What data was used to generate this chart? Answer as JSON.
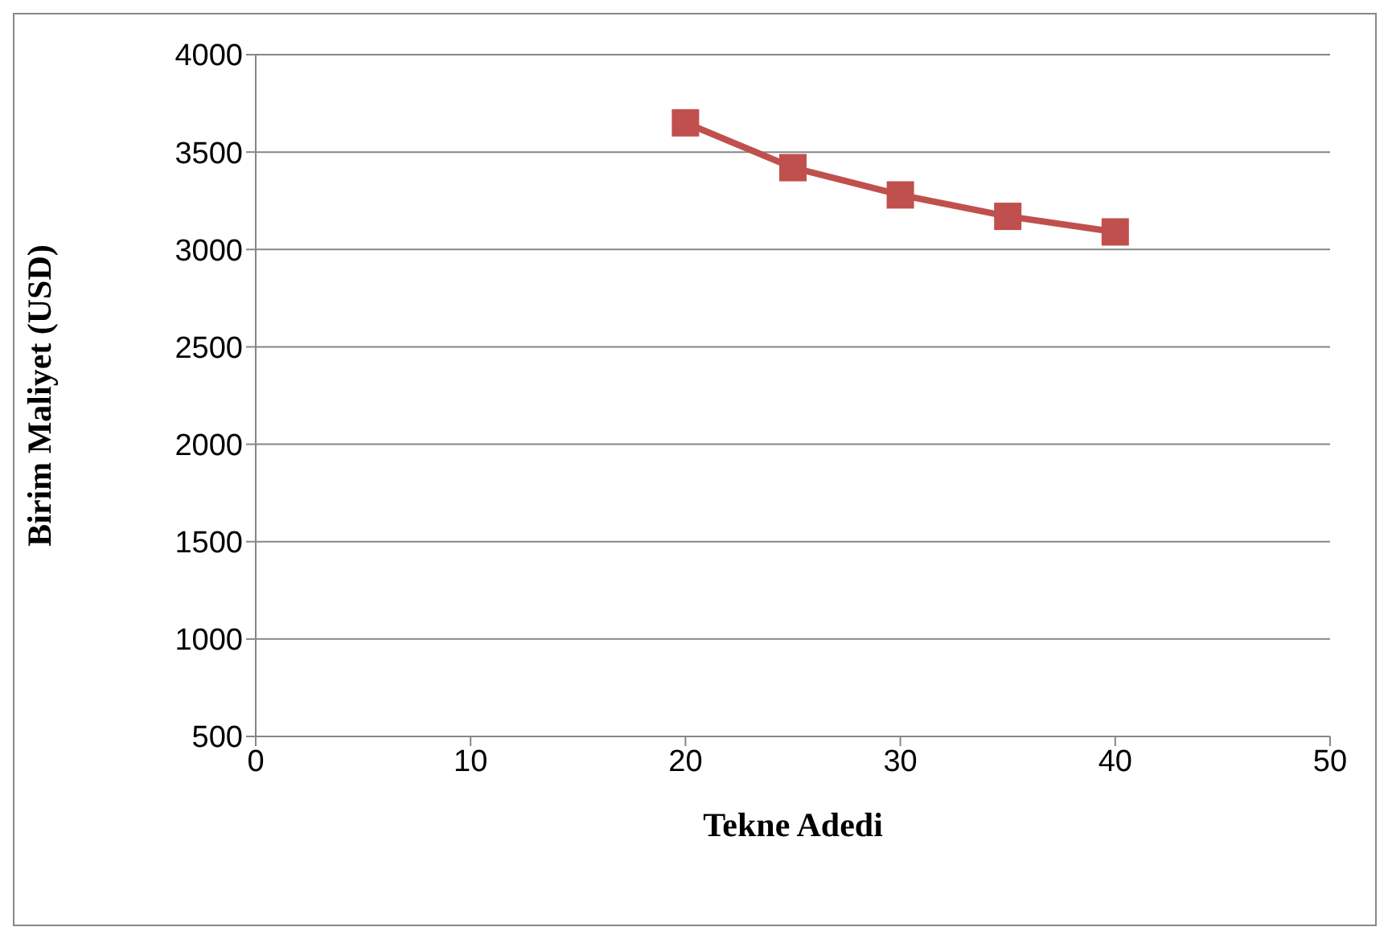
{
  "chart_data": {
    "type": "line",
    "xlabel": "Tekne Adedi",
    "ylabel": "Birim Maliyet  (USD)",
    "x": [
      20,
      25,
      30,
      35,
      40
    ],
    "series": [
      {
        "color": "#c0504d",
        "values": [
          3650,
          3420,
          3280,
          3170,
          3090
        ]
      }
    ],
    "xlim": [
      0,
      50
    ],
    "xticks": [
      0,
      10,
      20,
      30,
      40,
      50
    ],
    "ylim": [
      500,
      4000
    ],
    "yticks": [
      500,
      1000,
      1500,
      2000,
      2500,
      3000,
      3500,
      4000
    ],
    "grid": "y",
    "legend": false,
    "marker": "square",
    "line_style": "solid"
  }
}
